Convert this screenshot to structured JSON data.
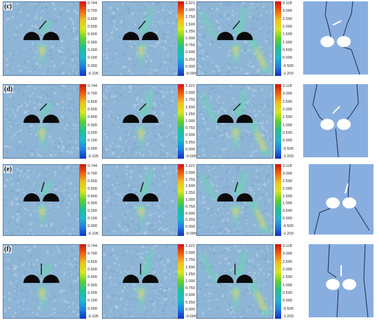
{
  "rows": [
    {
      "label": "(c)",
      "scales": [
        [
          "0.744",
          "0.700",
          "0.600",
          "0.500",
          "0.400",
          "0.300",
          "0.200",
          "0.100",
          "0.000",
          "-0.105"
        ],
        [
          "2.221",
          "2.000",
          "1.750",
          "1.500",
          "1.250",
          "1.000",
          "0.750",
          "0.500",
          "0.250",
          "0.000",
          "-0.099"
        ],
        [
          "3.118",
          "3.000",
          "2.500",
          "2.000",
          "1.500",
          "1.000",
          "0.500",
          "0.000",
          "-0.500",
          "-1.203"
        ]
      ]
    },
    {
      "label": "(d)",
      "scales": [
        [
          "0.744",
          "0.700",
          "0.600",
          "0.500",
          "0.400",
          "0.300",
          "0.200",
          "0.100",
          "0.000",
          "-0.105"
        ],
        [
          "2.221",
          "2.000",
          "1.750",
          "1.500",
          "1.250",
          "1.000",
          "0.750",
          "0.500",
          "0.250",
          "0.000",
          "-0.099"
        ],
        [
          "3.118",
          "3.000",
          "2.500",
          "2.000",
          "1.500",
          "1.000",
          "0.500",
          "0.000",
          "-0.500",
          "-1.203"
        ]
      ]
    },
    {
      "label": "(e)",
      "scales": [
        [
          "0.744",
          "0.700",
          "0.600",
          "0.500",
          "0.400",
          "0.300",
          "0.200",
          "0.100",
          "0.000",
          "-0.105"
        ],
        [
          "2.221",
          "2.000",
          "1.750",
          "1.500",
          "1.250",
          "1.000",
          "0.750",
          "0.500",
          "0.250",
          "0.000",
          "-0.099"
        ],
        [
          "3.118",
          "3.000",
          "2.500",
          "2.000",
          "1.500",
          "1.000",
          "0.500",
          "0.000",
          "-0.500",
          "-1.203"
        ]
      ]
    },
    {
      "label": "(f)",
      "scales": [
        [
          "0.744",
          "0.700",
          "0.600",
          "0.500",
          "0.400",
          "0.300",
          "0.200",
          "0.100",
          "0.000",
          "-0.105"
        ],
        [
          "2.221",
          "2.000",
          "1.750",
          "1.500",
          "1.250",
          "1.000",
          "0.750",
          "0.500",
          "0.250",
          "0.000",
          "-0.099"
        ],
        [
          "3.118",
          "3.000",
          "2.500",
          "2.000",
          "1.500",
          "1.000",
          "0.500",
          "0.000",
          "-0.500",
          "-1.203"
        ]
      ]
    }
  ],
  "colors": {
    "background_field": "#8fb5d6",
    "crack_zone": "#6fd0b8",
    "hot_zone": "#e8d060",
    "tunnel": "#0a0a0a",
    "sketch_bg": "#88aee0",
    "sketch_crack": "#1c2a4a",
    "colormap": [
      "#d01010",
      "#f06010",
      "#f0c020",
      "#d8e820",
      "#60d030",
      "#20c090",
      "#20b8d0",
      "#2080e0",
      "#1030c0"
    ]
  }
}
